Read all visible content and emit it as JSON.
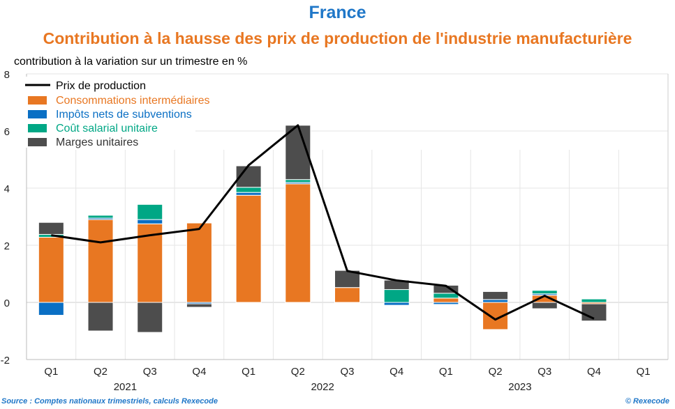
{
  "chart_data": {
    "type": "bar",
    "stacked": true,
    "title": "France",
    "subtitle": "Contribution à la hausse des prix de production de l'industrie manufacturière",
    "ylabel": "contribution à la variation sur un trimestre en %",
    "ylim": [
      -2,
      8
    ],
    "yticks": [
      -2,
      0,
      2,
      4,
      6,
      8
    ],
    "grid": true,
    "legend_position": "top-left",
    "categories": [
      "Q1",
      "Q2",
      "Q3",
      "Q4",
      "Q1",
      "Q2",
      "Q3",
      "Q4",
      "Q1",
      "Q2",
      "Q3",
      "Q4",
      "Q1"
    ],
    "years": [
      {
        "label": "2021",
        "start": 0,
        "end": 3
      },
      {
        "label": "2022",
        "start": 4,
        "end": 7
      },
      {
        "label": "2023",
        "start": 8,
        "end": 11
      }
    ],
    "series": [
      {
        "name": "Consommations intermédiaires",
        "color": "#E87722",
        "values": [
          2.28,
          2.9,
          2.75,
          2.78,
          3.75,
          4.15,
          0.52,
          0,
          0.15,
          -0.95,
          0.25,
          -0.05,
          null
        ]
      },
      {
        "name": "Impôts nets de subventions",
        "color": "#0A6FC4",
        "values": [
          -0.45,
          0.05,
          0.15,
          -0.05,
          0.1,
          0.05,
          0,
          -0.1,
          -0.07,
          0.1,
          0.05,
          0,
          null
        ]
      },
      {
        "name": "Coût salarial unitaire",
        "color": "#00A785",
        "values": [
          0.1,
          0.1,
          0.53,
          0,
          0.18,
          0.1,
          0,
          0.45,
          0.17,
          0,
          0.12,
          0.12,
          null
        ]
      },
      {
        "name": "Marges unitaires",
        "color": "#4D4D4D",
        "values": [
          0.42,
          -1.0,
          -1.05,
          -0.12,
          0.75,
          1.9,
          0.6,
          0.33,
          0.28,
          0.28,
          -0.22,
          -0.6,
          null
        ]
      }
    ],
    "line": {
      "name": "Prix de production",
      "color": "#000000",
      "values": [
        2.35,
        2.1,
        2.35,
        2.57,
        4.8,
        6.2,
        1.1,
        0.77,
        0.58,
        -0.6,
        0.23,
        -0.57,
        null
      ]
    }
  },
  "source": "Source : Comptes nationaux trimestriels, calculs Rexecode",
  "credit": "© Rexecode"
}
